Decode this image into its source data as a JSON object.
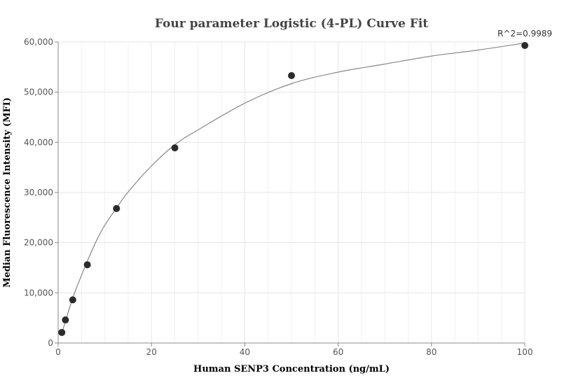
{
  "chart_data": {
    "type": "scatter",
    "title": "Four parameter Logistic (4-PL) Curve Fit",
    "xlabel": "Human SENP3 Concentration (ng/mL)",
    "ylabel": "Median Fluorescence Intensity (MFI)",
    "xlim": [
      0,
      100
    ],
    "ylim": [
      0,
      60000
    ],
    "x_ticks": [
      0,
      20,
      40,
      60,
      80,
      100
    ],
    "x_tick_labels": [
      "0",
      "20",
      "40",
      "60",
      "80",
      "100"
    ],
    "y_ticks": [
      0,
      10000,
      20000,
      30000,
      40000,
      50000,
      60000
    ],
    "y_tick_labels": [
      "0",
      "10,000",
      "20,000",
      "30,000",
      "40,000",
      "50,000",
      "60,000"
    ],
    "grid": true,
    "annotation": "R^2=0.9989",
    "series": [
      {
        "kind": "points",
        "x": [
          0.78,
          1.56,
          3.13,
          6.25,
          12.5,
          25,
          50,
          100
        ],
        "y": [
          2100,
          4600,
          8600,
          15600,
          26800,
          38900,
          53300,
          59300
        ]
      },
      {
        "kind": "fit-curve",
        "x": [
          0.78,
          1.56,
          3.13,
          5,
          6.25,
          8,
          10,
          12.5,
          15,
          20,
          25,
          30,
          40,
          50,
          60,
          70,
          80,
          90,
          100
        ],
        "y": [
          2000,
          4300,
          9000,
          13500,
          16300,
          20000,
          23500,
          26900,
          30100,
          35300,
          39500,
          42500,
          47800,
          51700,
          54000,
          55600,
          57200,
          58400,
          59800
        ]
      }
    ],
    "colors": {
      "points": "#2b2b2b",
      "curve": "#888888",
      "grid": "#e6e6e6"
    }
  }
}
